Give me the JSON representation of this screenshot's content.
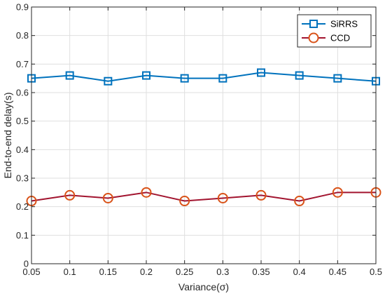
{
  "chart_data": {
    "type": "line",
    "title": "",
    "xlabel": "Variance(σ)",
    "ylabel": "End-to-end delay(s)",
    "xlim": [
      0.05,
      0.5
    ],
    "ylim": [
      0,
      0.9
    ],
    "x": [
      0.05,
      0.1,
      0.15,
      0.2,
      0.25,
      0.3,
      0.35,
      0.4,
      0.45,
      0.5
    ],
    "x_tick_labels": [
      "0.05",
      "0.1",
      "0.15",
      "0.2",
      "0.25",
      "0.3",
      "0.35",
      "0.4",
      "0.45",
      "0.5"
    ],
    "y_ticks": [
      0,
      0.1,
      0.2,
      0.3,
      0.4,
      0.5,
      0.6,
      0.7,
      0.8,
      0.9
    ],
    "y_tick_labels": [
      "0",
      "0.1",
      "0.2",
      "0.3",
      "0.4",
      "0.5",
      "0.6",
      "0.7",
      "0.8",
      "0.9"
    ],
    "grid": true,
    "legend_position": "top-right",
    "series": [
      {
        "name": "SiRRS",
        "color": "#0072BD",
        "marker": "square",
        "values": [
          0.65,
          0.66,
          0.64,
          0.66,
          0.65,
          0.65,
          0.67,
          0.66,
          0.65,
          0.64
        ]
      },
      {
        "name": "CCD",
        "color": "#D95319",
        "line_color": "#A2142F",
        "marker": "circle",
        "values": [
          0.22,
          0.24,
          0.23,
          0.25,
          0.22,
          0.23,
          0.24,
          0.22,
          0.25,
          0.25
        ]
      }
    ]
  }
}
